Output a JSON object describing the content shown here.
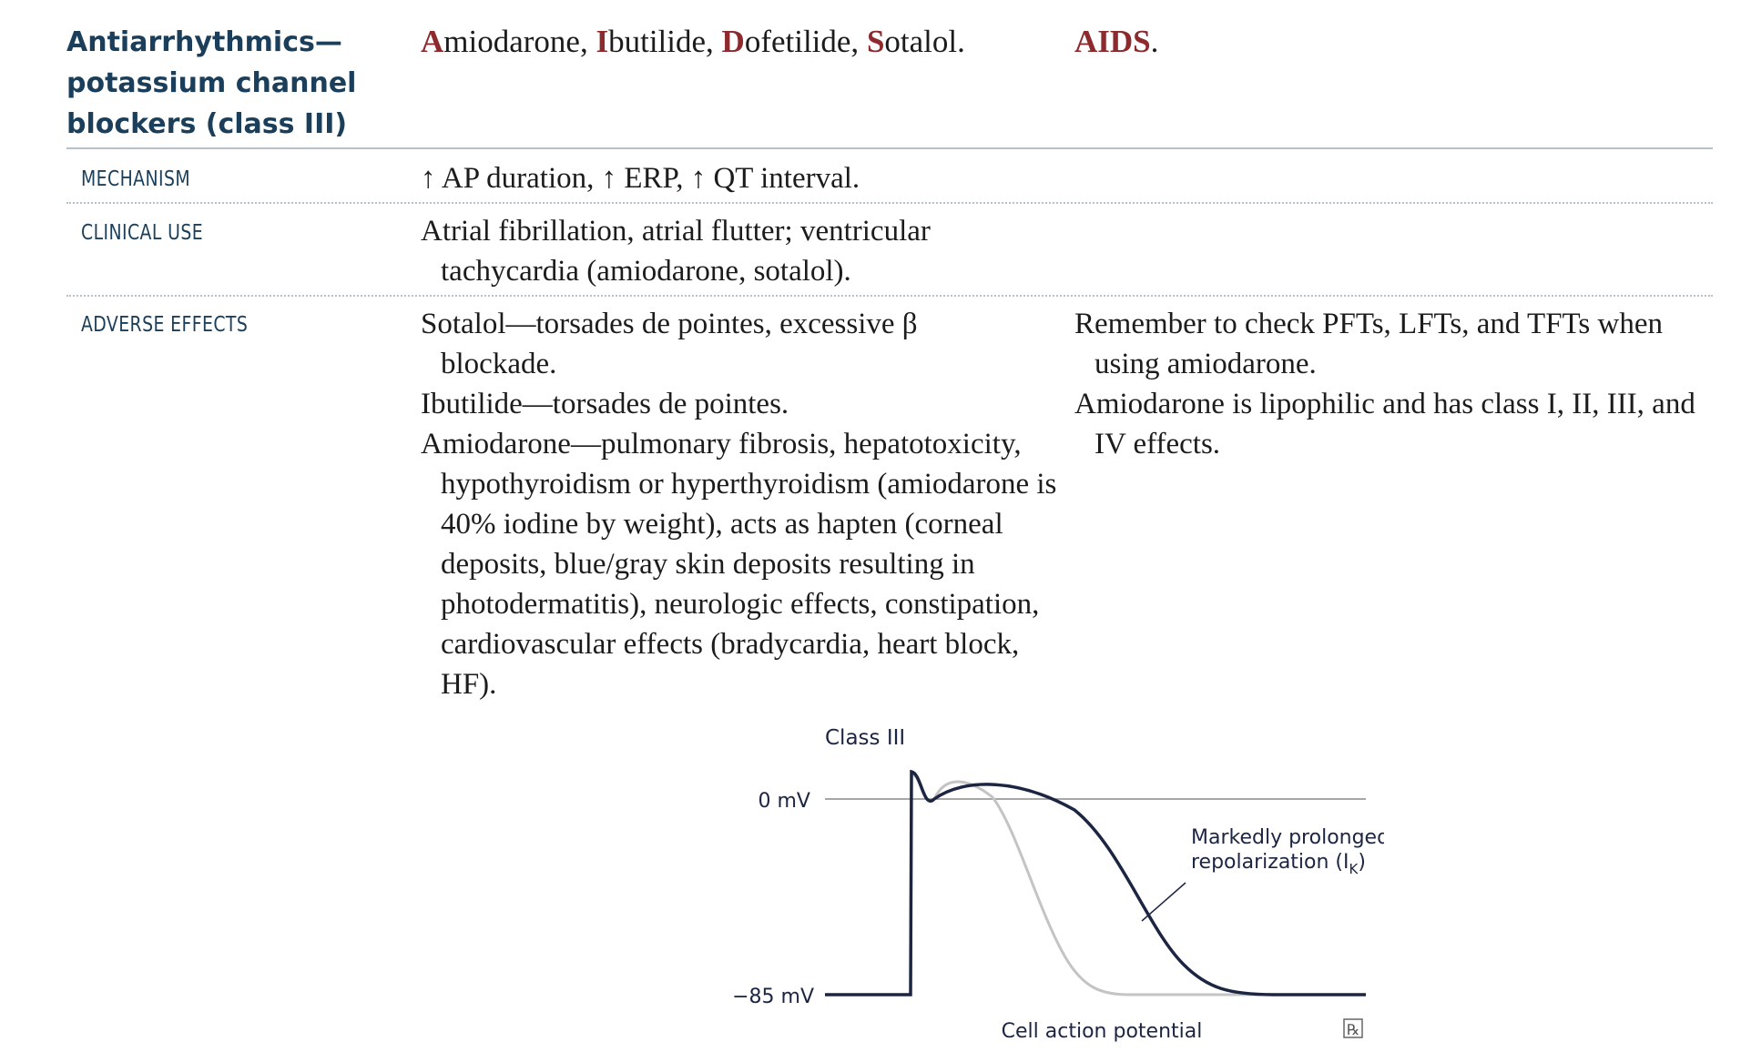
{
  "header": {
    "title_lines": [
      "Antiarrhythmics—",
      "potassium channel",
      "blockers (class III)"
    ],
    "mnemonic": [
      {
        "first": "A",
        "rest": "miodarone, "
      },
      {
        "first": "I",
        "rest": "butilide, "
      },
      {
        "first": "D",
        "rest": "ofetilide, "
      },
      {
        "first": "S",
        "rest": "otalol."
      }
    ],
    "aids_accent": "AIDS",
    "aids_period": "."
  },
  "mechanism": {
    "label": "MECHANISM",
    "text": "↑ AP duration, ↑ ERP, ↑ QT interval."
  },
  "clinical_use": {
    "label": "CLINICAL USE",
    "text": "Atrial fibrillation, atrial flutter; ventricular tachycardia (amiodarone, sotalol)."
  },
  "adverse_effects": {
    "label": "ADVERSE EFFECTS",
    "items": [
      "Sotalol—torsades de pointes, excessive β blockade.",
      "Ibutilide—torsades de pointes.",
      "Amiodarone—pulmonary fibrosis, hepatotoxicity, hypothyroidism or hyperthyroidism (amiodarone is 40% iodine by weight), acts as hapten (corneal deposits, blue/gray skin deposits resulting in photodermatitis), neurologic effects, constipation, cardiovascular effects (bradycardia, heart block, HF)."
    ],
    "notes": [
      "Remember to check PFTs, LFTs, and TFTs when using amiodarone.",
      "Amiodarone is lipophilic and has class I, II, III, and IV effects."
    ]
  },
  "figure": {
    "title": "Class III",
    "label_0mv": "0 mV",
    "label_85mv": "−85 mV",
    "annotation_line1": "Markedly prolonged",
    "annotation_line2": "repolarization (I",
    "annotation_sub": "K",
    "annotation_end": ")",
    "caption": "Cell action potential",
    "logo_text": "℞",
    "colors": {
      "curve": "#1c2542",
      "baseline_curve": "#c4c4c4",
      "zero_line": "#8a8a8a"
    }
  }
}
